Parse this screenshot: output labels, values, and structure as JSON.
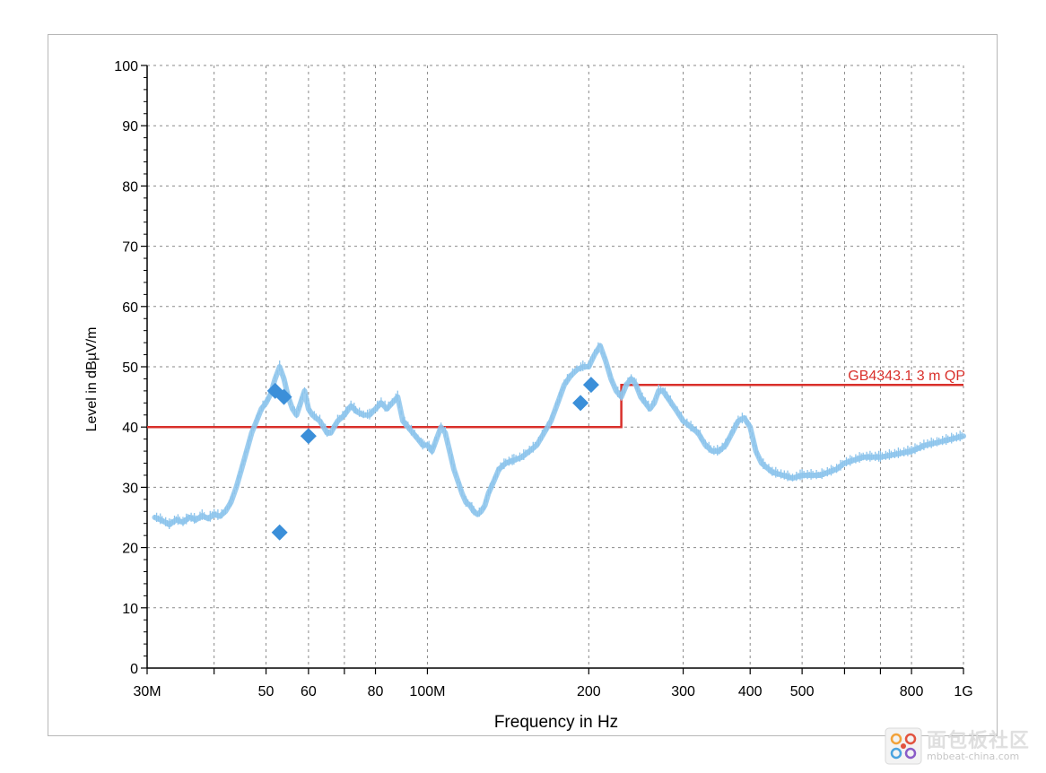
{
  "chart_data": {
    "type": "line",
    "x_scale": "log",
    "xlabel": "Frequency in Hz",
    "ylabel": "Level in dBµV/m",
    "xlim": [
      30,
      1000
    ],
    "ylim": [
      0,
      100
    ],
    "y_major_ticks": [
      0,
      10,
      20,
      30,
      40,
      50,
      60,
      70,
      80,
      90,
      100
    ],
    "y_minor_step": 2,
    "x_ticks": [
      {
        "value": 30,
        "label": "30M"
      },
      {
        "value": 40,
        "label": ""
      },
      {
        "value": 50,
        "label": "50"
      },
      {
        "value": 60,
        "label": "60"
      },
      {
        "value": 70,
        "label": ""
      },
      {
        "value": 80,
        "label": "80"
      },
      {
        "value": 100,
        "label": "100M"
      },
      {
        "value": 200,
        "label": "200"
      },
      {
        "value": 300,
        "label": "300"
      },
      {
        "value": 400,
        "label": "400"
      },
      {
        "value": 500,
        "label": "500"
      },
      {
        "value": 600,
        "label": ""
      },
      {
        "value": 700,
        "label": ""
      },
      {
        "value": 800,
        "label": "800"
      },
      {
        "value": 1000,
        "label": "1G"
      }
    ],
    "grid": true,
    "limit_line": {
      "label": "GB4343.1 3 m QP",
      "color": "#d9302b",
      "points": [
        [
          30,
          40
        ],
        [
          230,
          40
        ],
        [
          230,
          47
        ],
        [
          1000,
          47
        ]
      ]
    },
    "trace": {
      "color": "#8cc4ec",
      "points": [
        [
          31,
          25
        ],
        [
          32,
          24.5
        ],
        [
          33,
          23.8
        ],
        [
          34,
          24.6
        ],
        [
          35,
          24.2
        ],
        [
          36,
          25.0
        ],
        [
          37,
          24.6
        ],
        [
          38,
          25.3
        ],
        [
          39,
          24.8
        ],
        [
          40,
          25.5
        ],
        [
          41,
          25.2
        ],
        [
          42,
          26.0
        ],
        [
          43,
          27.5
        ],
        [
          44,
          30
        ],
        [
          45,
          33
        ],
        [
          46,
          36
        ],
        [
          47,
          39
        ],
        [
          48,
          41
        ],
        [
          49,
          43
        ],
        [
          50,
          44
        ],
        [
          51,
          45.5
        ],
        [
          52,
          48
        ],
        [
          53,
          50
        ],
        [
          54,
          48
        ],
        [
          55,
          45
        ],
        [
          56,
          43
        ],
        [
          57,
          42
        ],
        [
          58,
          44
        ],
        [
          59,
          46
        ],
        [
          60,
          43
        ],
        [
          61,
          42
        ],
        [
          62,
          41.5
        ],
        [
          63,
          41
        ],
        [
          64,
          40
        ],
        [
          65,
          39
        ],
        [
          66,
          39
        ],
        [
          67,
          40
        ],
        [
          68,
          41
        ],
        [
          70,
          42
        ],
        [
          72,
          43.5
        ],
        [
          74,
          42.5
        ],
        [
          76,
          42
        ],
        [
          78,
          42
        ],
        [
          80,
          43
        ],
        [
          82,
          44
        ],
        [
          84,
          43
        ],
        [
          86,
          44
        ],
        [
          88,
          45
        ],
        [
          90,
          41
        ],
        [
          92,
          40
        ],
        [
          94,
          39
        ],
        [
          96,
          38
        ],
        [
          98,
          37
        ],
        [
          100,
          37
        ],
        [
          102,
          36
        ],
        [
          104,
          38
        ],
        [
          106,
          40
        ],
        [
          108,
          39
        ],
        [
          110,
          36
        ],
        [
          112,
          33
        ],
        [
          114,
          31
        ],
        [
          116,
          29
        ],
        [
          118,
          27.5
        ],
        [
          120,
          27
        ],
        [
          122,
          26
        ],
        [
          124,
          25.5
        ],
        [
          126,
          26
        ],
        [
          128,
          27
        ],
        [
          130,
          29
        ],
        [
          133,
          31
        ],
        [
          136,
          33
        ],
        [
          140,
          34
        ],
        [
          145,
          34.5
        ],
        [
          150,
          35
        ],
        [
          155,
          36
        ],
        [
          160,
          37
        ],
        [
          165,
          39
        ],
        [
          170,
          41
        ],
        [
          175,
          44
        ],
        [
          180,
          47
        ],
        [
          185,
          48.5
        ],
        [
          190,
          49.5
        ],
        [
          195,
          50
        ],
        [
          200,
          50
        ],
        [
          205,
          52
        ],
        [
          210,
          53.5
        ],
        [
          215,
          51
        ],
        [
          220,
          48
        ],
        [
          225,
          46
        ],
        [
          230,
          45
        ],
        [
          235,
          47
        ],
        [
          240,
          48
        ],
        [
          245,
          47
        ],
        [
          250,
          45
        ],
        [
          255,
          44
        ],
        [
          260,
          43
        ],
        [
          265,
          44
        ],
        [
          270,
          46
        ],
        [
          275,
          46
        ],
        [
          280,
          45
        ],
        [
          290,
          43
        ],
        [
          300,
          41
        ],
        [
          310,
          40
        ],
        [
          320,
          39
        ],
        [
          330,
          37
        ],
        [
          340,
          36
        ],
        [
          350,
          36
        ],
        [
          360,
          37
        ],
        [
          370,
          39
        ],
        [
          380,
          41
        ],
        [
          390,
          41.5
        ],
        [
          400,
          40
        ],
        [
          410,
          36
        ],
        [
          420,
          34
        ],
        [
          440,
          32.5
        ],
        [
          460,
          32
        ],
        [
          480,
          31.5
        ],
        [
          500,
          32
        ],
        [
          540,
          32
        ],
        [
          580,
          33
        ],
        [
          600,
          34
        ],
        [
          650,
          35
        ],
        [
          700,
          35
        ],
        [
          750,
          35.5
        ],
        [
          800,
          36
        ],
        [
          850,
          37
        ],
        [
          900,
          37.5
        ],
        [
          950,
          38
        ],
        [
          1000,
          38.5
        ]
      ]
    },
    "markers": {
      "color": "#3b8fd9",
      "points": [
        [
          52,
          46
        ],
        [
          54,
          45
        ],
        [
          53,
          22.5
        ],
        [
          60,
          38.5
        ],
        [
          193,
          44
        ],
        [
          202,
          47
        ]
      ]
    }
  },
  "watermark": {
    "title": "面包板社区",
    "url": "mbbeat-china.com"
  }
}
